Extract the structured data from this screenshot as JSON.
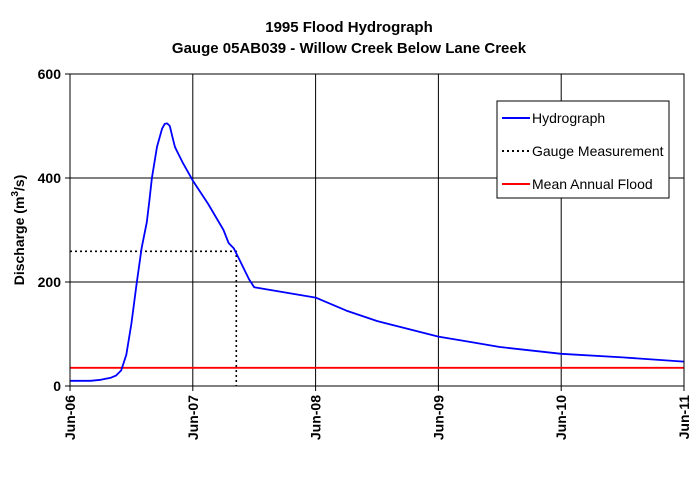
{
  "chart_data": {
    "type": "line",
    "title": "1995 Flood Hydrograph",
    "subtitle": "Gauge 05AB039 - Willow Creek Below Lane Creek",
    "ylabel": "Discharge (m",
    "ylabel_sup": "3",
    "ylabel_tail": "/s)",
    "xlabel": "",
    "xlim": [
      "Jun-06",
      "Jun-11"
    ],
    "ylim": [
      0,
      600
    ],
    "x_ticks": [
      "Jun-06",
      "Jun-07",
      "Jun-08",
      "Jun-09",
      "Jun-10",
      "Jun-11"
    ],
    "y_ticks": [
      "0",
      "200",
      "400",
      "600"
    ],
    "grid": true,
    "legend": {
      "placement": "top-right",
      "entries": [
        "Hydrograph",
        "Gauge Measurement",
        "Mean Annual Flood"
      ]
    },
    "series": [
      {
        "name": "Hydrograph",
        "color": "#0000ff",
        "style": "solid",
        "points": [
          [
            "Jun-06 00:00",
            10
          ],
          [
            "Jun-06 04:00",
            10
          ],
          [
            "Jun-06 06:00",
            12
          ],
          [
            "Jun-06 08:00",
            16
          ],
          [
            "Jun-06 09:00",
            20
          ],
          [
            "Jun-06 10:00",
            30
          ],
          [
            "Jun-06 11:00",
            60
          ],
          [
            "Jun-06 12:00",
            120
          ],
          [
            "Jun-06 13:00",
            195
          ],
          [
            "Jun-06 14:00",
            265
          ],
          [
            "Jun-06 14:30",
            290
          ],
          [
            "Jun-06 15:00",
            315
          ],
          [
            "Jun-06 15:30",
            355
          ],
          [
            "Jun-06 16:00",
            400
          ],
          [
            "Jun-06 17:00",
            460
          ],
          [
            "Jun-06 18:00",
            495
          ],
          [
            "Jun-06 18:30",
            504
          ],
          [
            "Jun-06 19:00",
            505
          ],
          [
            "Jun-06 19:30",
            500
          ],
          [
            "Jun-06 20:00",
            480
          ],
          [
            "Jun-06 20:30",
            460
          ],
          [
            "Jun-06 21:00",
            450
          ],
          [
            "Jun-06 22:00",
            430
          ],
          [
            "Jun-07 00:00",
            395
          ],
          [
            "Jun-07 03:00",
            350
          ],
          [
            "Jun-07 06:00",
            300
          ],
          [
            "Jun-07 07:00",
            275
          ],
          [
            "Jun-07 08:00",
            265
          ],
          [
            "Jun-07 09:00",
            245
          ],
          [
            "Jun-07 11:00",
            205
          ],
          [
            "Jun-07 12:00",
            190
          ],
          [
            "Jun-08 00:00",
            170
          ],
          [
            "Jun-08 06:00",
            145
          ],
          [
            "Jun-08 12:00",
            125
          ],
          [
            "Jun-09 00:00",
            95
          ],
          [
            "Jun-09 06:00",
            85
          ],
          [
            "Jun-09 12:00",
            75
          ],
          [
            "Jun-10 00:00",
            62
          ],
          [
            "Jun-10 12:00",
            55
          ],
          [
            "Jun-11 00:00",
            47
          ]
        ]
      },
      {
        "name": "Gauge Measurement",
        "color": "#000000",
        "style": "dotted",
        "points": [
          [
            "Jun-06 00:00",
            259
          ],
          [
            "Jun-07 08:30",
            259
          ],
          [
            "Jun-07 08:30",
            0
          ]
        ]
      },
      {
        "name": "Mean Annual Flood",
        "color": "#ff0000",
        "style": "solid",
        "points": [
          [
            "Jun-06 00:00",
            35
          ],
          [
            "Jun-11 00:00",
            35
          ]
        ]
      }
    ]
  }
}
